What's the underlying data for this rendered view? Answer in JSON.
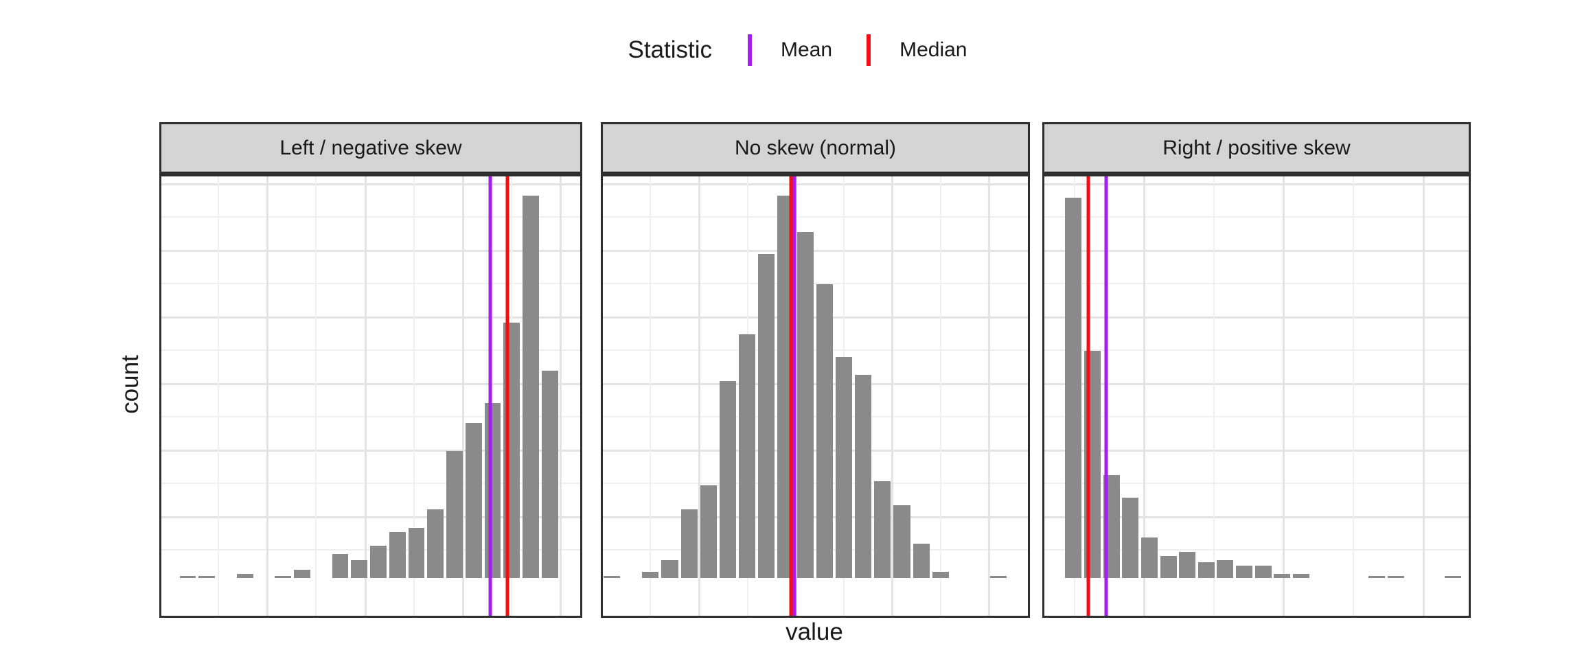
{
  "chart_data": {
    "type": "bar",
    "subtype": "faceted-histogram",
    "title": "",
    "xlabel": "value",
    "ylabel": "count",
    "legend": {
      "title": "Statistic",
      "position": "top-center",
      "entries": [
        {
          "label": "Mean",
          "color": "#A51EF0",
          "glyph": "vertical-line"
        },
        {
          "label": "Median",
          "color": "#F80C12",
          "glyph": "vertical-line"
        }
      ]
    },
    "y_axis": {
      "min": 0,
      "max": 202,
      "tick_labels_visible": false
    },
    "x_axis": {
      "tick_labels_visible": false
    },
    "grid": {
      "on": true,
      "major_color": "#e3e3e3",
      "minor_color": "#f0f0f0"
    },
    "style": {
      "bar_color": "#8a8a8a",
      "strip_background": "#d4d4d4",
      "panel_border": "#2e2e2e",
      "background": "#ffffff"
    },
    "panels": [
      {
        "title": "Left / negative skew",
        "skew": "left",
        "counts": [
          1,
          1,
          0,
          2,
          0,
          1,
          4,
          0,
          12,
          9,
          16,
          23,
          25,
          34,
          63,
          77,
          87,
          127,
          190,
          103
        ],
        "mean_x_frac": 0.785,
        "median_x_frac": 0.826,
        "x0": 0.063,
        "pitch": 0.0455,
        "vgrid": [
          0.135,
          0.251,
          0.368,
          0.485,
          0.601,
          0.718,
          0.835,
          0.951
        ]
      },
      {
        "title": "No skew (normal)",
        "skew": "none",
        "counts": [
          1,
          0,
          3,
          9,
          34,
          46,
          98,
          121,
          161,
          190,
          172,
          146,
          110,
          101,
          48,
          36,
          17,
          3,
          0,
          0,
          1
        ],
        "mean_x_frac": 0.451,
        "median_x_frac": 0.443,
        "x0": 0.021,
        "pitch": 0.0455,
        "vgrid": [
          0.11,
          0.224,
          0.339,
          0.453,
          0.565,
          0.678,
          0.794,
          0.907
        ]
      },
      {
        "title": "Right / positive skew",
        "skew": "right",
        "counts": [
          189,
          113,
          51,
          40,
          20,
          11,
          13,
          8,
          9,
          6,
          6,
          2,
          2,
          0,
          0,
          0,
          1,
          1,
          0,
          0,
          1
        ],
        "mean_x_frac": 0.145,
        "median_x_frac": 0.104,
        "x0": 0.0687,
        "pitch": 0.0447,
        "vgrid": [
          0.069,
          0.233,
          0.398,
          0.562,
          0.727,
          0.891
        ]
      }
    ],
    "hgrid_major": [
      0.0155,
      0.165,
      0.315,
      0.465,
      0.615,
      0.765
    ],
    "hgrid_minor": [
      0.09,
      0.24,
      0.39,
      0.54,
      0.69,
      0.84
    ]
  }
}
